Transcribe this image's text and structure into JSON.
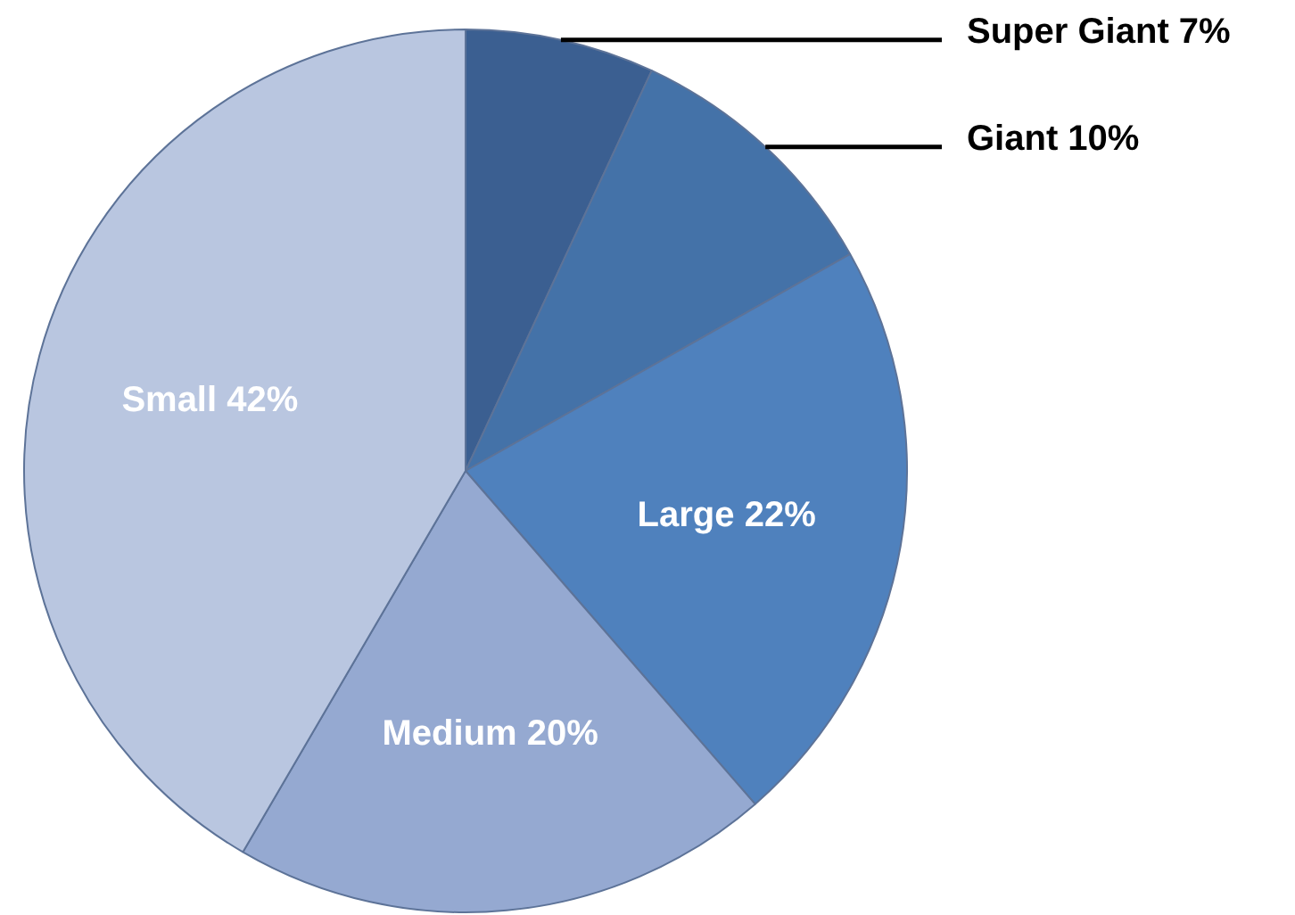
{
  "chart_data": {
    "type": "pie",
    "categories": [
      "Super Giant",
      "Giant",
      "Large",
      "Medium",
      "Small"
    ],
    "values": [
      7,
      10,
      22,
      20,
      42
    ],
    "value_labels": [
      "7%",
      "10%",
      "22%",
      "20%",
      "42%"
    ],
    "colors": [
      "#3b5f91",
      "#4472a8",
      "#4f81bd",
      "#95a9d1",
      "#b9c6e0"
    ],
    "legend": false
  }
}
